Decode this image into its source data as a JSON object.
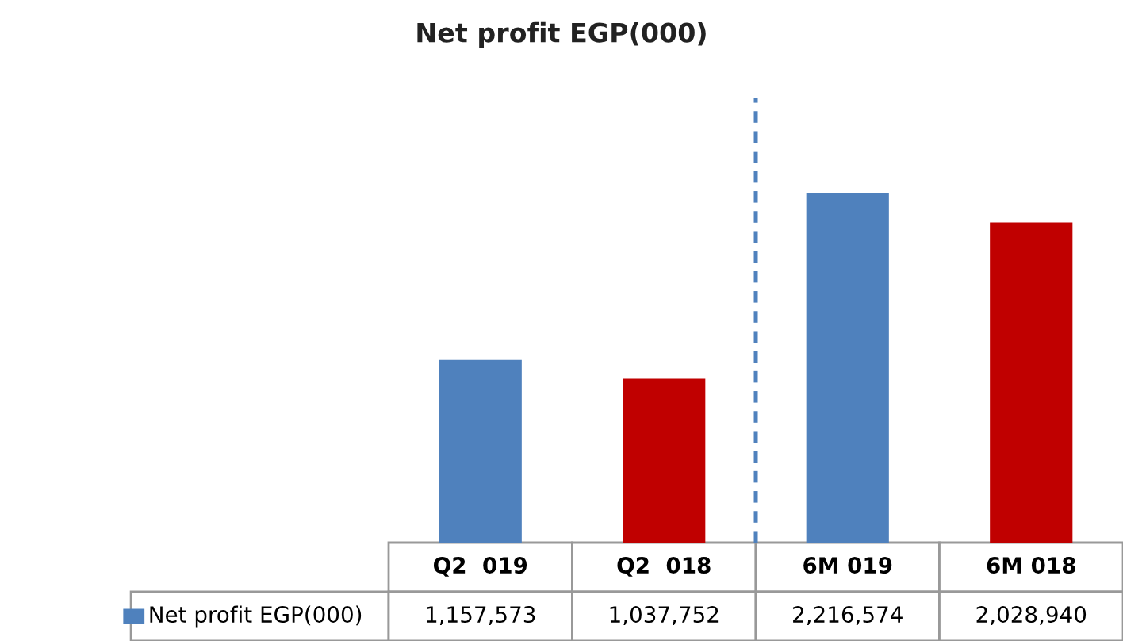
{
  "chart_data": {
    "type": "bar",
    "title": "Net profit EGP(000)",
    "categories": [
      "Q2  019",
      "Q2  018",
      "6M 019",
      "6M 018"
    ],
    "series": [
      {
        "name": "Net profit EGP(000)",
        "color": "#4f81bd",
        "colors": [
          "#4f81bd",
          "#c00000",
          "#4f81bd",
          "#c00000"
        ],
        "values": [
          1157573,
          1037752,
          2216574,
          2028940
        ],
        "value_labels": [
          "1,157,573",
          "1,037,752",
          "2,216,574",
          "2,028,940"
        ]
      }
    ],
    "legend": "bottom"
  }
}
